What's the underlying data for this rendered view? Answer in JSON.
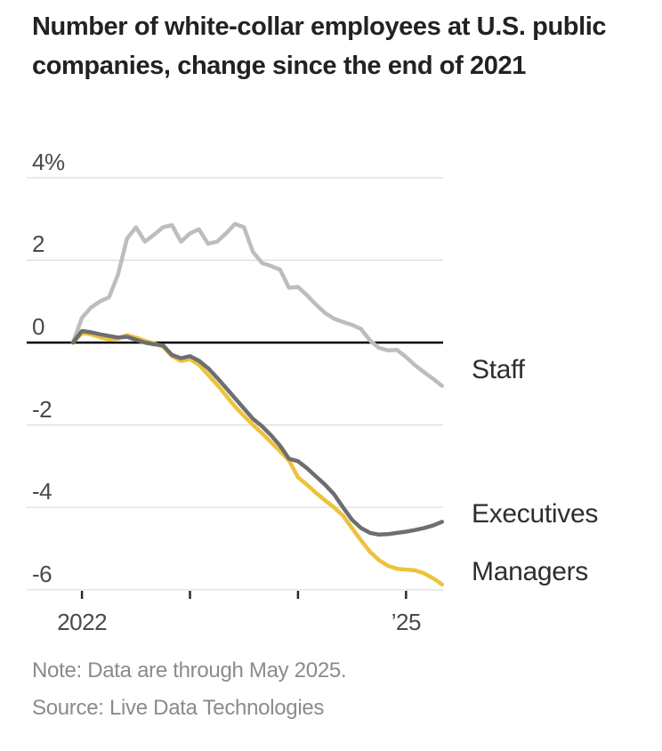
{
  "chart_data": {
    "type": "line",
    "title": "Number of white-collar employees at U.S. public companies, change since the end of 2021",
    "unit": "%",
    "x_description": "Monthly values, December 2021 (index 0) through May 2025 (index 41)",
    "ylim": [
      -6.6,
      4.6
    ],
    "grid": true,
    "legend_position": "right-end-labels",
    "y_ticks": [
      {
        "value": 4,
        "label": "4%"
      },
      {
        "value": 2,
        "label": "2"
      },
      {
        "value": 0,
        "label": "0"
      },
      {
        "value": -2,
        "label": "-2"
      },
      {
        "value": -4,
        "label": "-4"
      },
      {
        "value": -6,
        "label": "-6"
      }
    ],
    "x_ticks": [
      {
        "month_index": 1,
        "label": "2022"
      },
      {
        "month_index": 13,
        "label": ""
      },
      {
        "month_index": 25,
        "label": ""
      },
      {
        "month_index": 37,
        "label": "’25"
      }
    ],
    "series": [
      {
        "name": "Staff",
        "color": "#bdbdbd",
        "values": [
          0,
          0.6,
          0.85,
          1.0,
          1.1,
          1.65,
          2.52,
          2.8,
          2.45,
          2.62,
          2.8,
          2.85,
          2.45,
          2.65,
          2.75,
          2.4,
          2.45,
          2.65,
          2.88,
          2.8,
          2.2,
          1.93,
          1.86,
          1.77,
          1.33,
          1.35,
          1.15,
          0.92,
          0.72,
          0.58,
          0.5,
          0.43,
          0.33,
          0.05,
          -0.13,
          -0.19,
          -0.18,
          -0.35,
          -0.55,
          -0.72,
          -0.88,
          -1.05
        ]
      },
      {
        "name": "Executives",
        "color": "#6e6e6e",
        "values": [
          0,
          0.28,
          0.25,
          0.2,
          0.16,
          0.12,
          0.14,
          0.07,
          0.0,
          -0.04,
          -0.07,
          -0.3,
          -0.38,
          -0.33,
          -0.44,
          -0.62,
          -0.85,
          -1.1,
          -1.35,
          -1.6,
          -1.85,
          -2.03,
          -2.25,
          -2.5,
          -2.82,
          -2.88,
          -3.05,
          -3.25,
          -3.45,
          -3.68,
          -4.0,
          -4.3,
          -4.5,
          -4.62,
          -4.66,
          -4.65,
          -4.62,
          -4.59,
          -4.55,
          -4.5,
          -4.44,
          -4.35
        ]
      },
      {
        "name": "Managers",
        "color": "#ecc33c",
        "values": [
          0,
          0.23,
          0.2,
          0.13,
          0.08,
          0.1,
          0.18,
          0.12,
          0.04,
          -0.02,
          -0.1,
          -0.33,
          -0.45,
          -0.4,
          -0.54,
          -0.78,
          -1.02,
          -1.28,
          -1.55,
          -1.78,
          -2.0,
          -2.2,
          -2.42,
          -2.64,
          -2.86,
          -3.27,
          -3.45,
          -3.65,
          -3.83,
          -4.0,
          -4.2,
          -4.5,
          -4.8,
          -5.08,
          -5.28,
          -5.42,
          -5.49,
          -5.51,
          -5.53,
          -5.6,
          -5.72,
          -5.87
        ]
      }
    ]
  },
  "note": "Note: Data are through May 2025.",
  "source": "Source: Live Data Technologies",
  "colors": {
    "background": "#ffffff",
    "grid_line": "#dbdbdb",
    "zero_line": "#000000",
    "tick_mark": "#2b2b2b",
    "title_text": "#222222",
    "axis_label_text": "#4a4a4a",
    "series_label_text": "#2e2e2e",
    "note_text": "#8b8b8b"
  }
}
